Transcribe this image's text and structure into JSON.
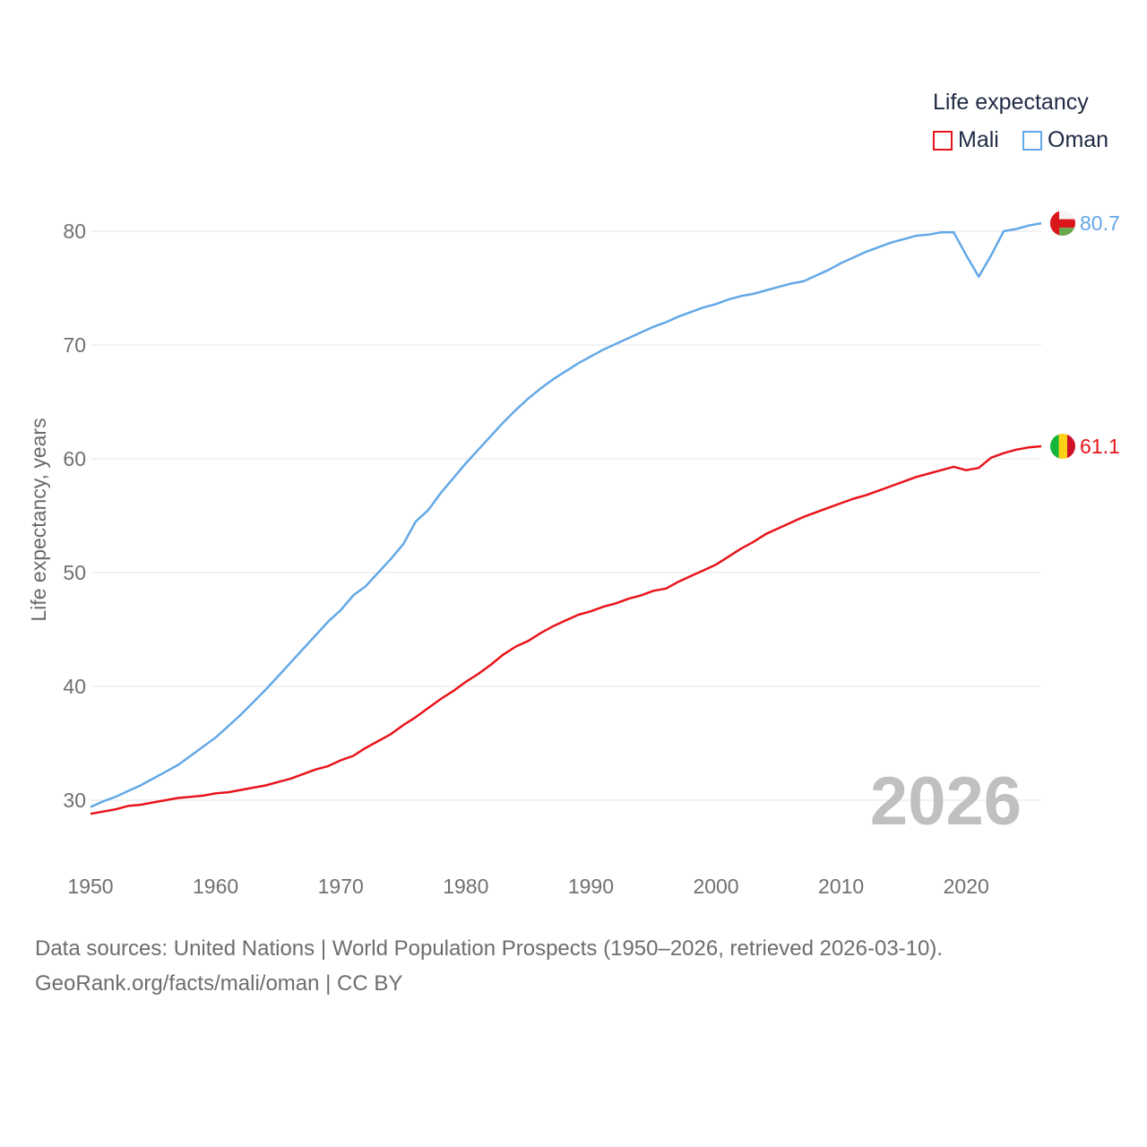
{
  "legend": {
    "title": "Life expectancy",
    "items": [
      {
        "label": "Mali",
        "color": "#e8141b"
      },
      {
        "label": "Oman",
        "color": "#63a8e6"
      }
    ]
  },
  "source": {
    "line1": "Data sources: United Nations | World Population Prospects (1950–2026, retrieved 2026-03-10).",
    "line2": "GeoRank.org/facts/mali/oman | CC BY"
  },
  "chart_data": {
    "type": "line",
    "title": "Life expectancy",
    "xlabel": "",
    "ylabel": "Life expectancy, years",
    "xlim": [
      1950,
      2026
    ],
    "ylim": [
      25,
      85
    ],
    "x_ticks": [
      1950,
      1960,
      1970,
      1980,
      1990,
      2000,
      2010,
      2020
    ],
    "y_ticks": [
      30,
      40,
      50,
      60,
      70,
      80
    ],
    "grid": true,
    "year_watermark": "2026",
    "x": [
      1950,
      1951,
      1952,
      1953,
      1954,
      1955,
      1956,
      1957,
      1958,
      1959,
      1960,
      1961,
      1962,
      1963,
      1964,
      1965,
      1966,
      1967,
      1968,
      1969,
      1970,
      1971,
      1972,
      1973,
      1974,
      1975,
      1976,
      1977,
      1978,
      1979,
      1980,
      1981,
      1982,
      1983,
      1984,
      1985,
      1986,
      1987,
      1988,
      1989,
      1990,
      1991,
      1992,
      1993,
      1994,
      1995,
      1996,
      1997,
      1998,
      1999,
      2000,
      2001,
      2002,
      2003,
      2004,
      2005,
      2006,
      2007,
      2008,
      2009,
      2010,
      2011,
      2012,
      2013,
      2014,
      2015,
      2016,
      2017,
      2018,
      2019,
      2020,
      2021,
      2022,
      2023,
      2024,
      2025,
      2026
    ],
    "series": [
      {
        "name": "Mali",
        "color": "#e8141b",
        "end_label": "61.1",
        "values": [
          28.8,
          29.0,
          29.2,
          29.5,
          29.6,
          29.8,
          30.0,
          30.2,
          30.3,
          30.4,
          30.6,
          30.7,
          30.9,
          31.1,
          31.3,
          31.6,
          31.9,
          32.3,
          32.7,
          33.0,
          33.5,
          33.9,
          34.6,
          35.2,
          35.8,
          36.6,
          37.3,
          38.1,
          38.9,
          39.6,
          40.4,
          41.1,
          41.9,
          42.8,
          43.5,
          44.0,
          44.7,
          45.3,
          45.8,
          46.3,
          46.6,
          47.0,
          47.3,
          47.7,
          48.0,
          48.4,
          48.6,
          49.2,
          49.7,
          50.2,
          50.7,
          51.4,
          52.1,
          52.7,
          53.4,
          53.9,
          54.4,
          54.9,
          55.3,
          55.7,
          56.1,
          56.5,
          56.8,
          57.2,
          57.6,
          58.0,
          58.4,
          58.7,
          59.0,
          59.3,
          59.0,
          59.2,
          60.1,
          60.5,
          60.8,
          61.0,
          61.1
        ]
      },
      {
        "name": "Oman",
        "color": "#63a8e6",
        "end_label": "80.7",
        "values": [
          29.4,
          29.9,
          30.3,
          30.8,
          31.3,
          31.9,
          32.5,
          33.1,
          33.9,
          34.7,
          35.5,
          36.5,
          37.5,
          38.6,
          39.7,
          40.9,
          42.1,
          43.3,
          44.5,
          45.7,
          46.7,
          48.0,
          48.8,
          50.0,
          51.2,
          52.5,
          54.5,
          55.5,
          57.0,
          58.3,
          59.6,
          60.8,
          62.0,
          63.2,
          64.3,
          65.3,
          66.2,
          67.0,
          67.7,
          68.4,
          69.0,
          69.6,
          70.1,
          70.6,
          71.1,
          71.6,
          72.0,
          72.5,
          72.9,
          73.3,
          73.6,
          74.0,
          74.3,
          74.5,
          74.8,
          75.1,
          75.4,
          75.6,
          76.1,
          76.6,
          77.2,
          77.7,
          78.2,
          78.6,
          79.0,
          79.3,
          79.6,
          79.7,
          79.9,
          79.9,
          77.9,
          76.0,
          77.9,
          80.0,
          80.2,
          80.5,
          80.7
        ]
      }
    ]
  }
}
